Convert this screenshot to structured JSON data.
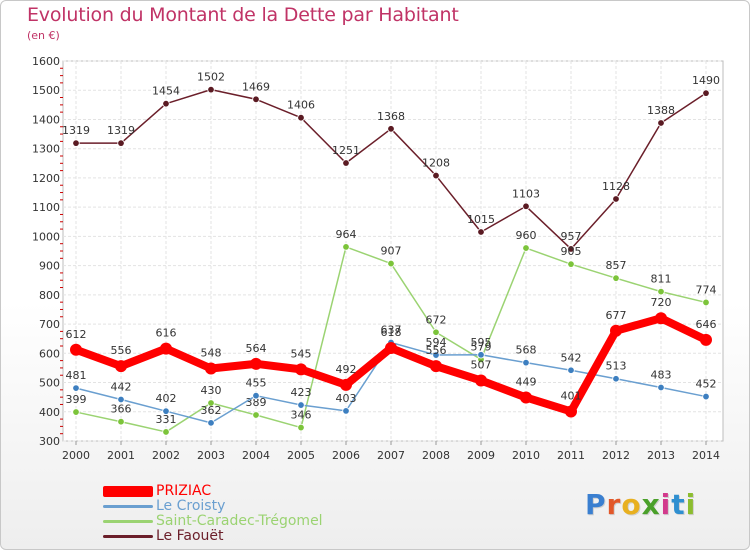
{
  "header": {
    "title": "Evolution du Montant de la Dette par Habitant",
    "subtitle": "(en €)"
  },
  "logo": {
    "text": "Proxiti",
    "colors": [
      "#3a7fd0",
      "#e2582a",
      "#e8b020",
      "#4aa02a",
      "#d23a8c",
      "#2f8fd0",
      "#8cbd2f"
    ]
  },
  "chart_data": {
    "type": "line",
    "title": "Evolution du Montant de la Dette par Habitant",
    "subtitle": "(en €)",
    "xlabel": "",
    "ylabel": "",
    "ylim": [
      300,
      1600
    ],
    "yticks": [
      300,
      400,
      500,
      600,
      700,
      800,
      900,
      1000,
      1100,
      1200,
      1300,
      1400,
      1500,
      1600
    ],
    "grid": true,
    "legend_position": "bottom-left",
    "x": [
      "2000",
      "2001",
      "2002",
      "2003",
      "2004",
      "2005",
      "2006",
      "2007",
      "2008",
      "2009",
      "2010",
      "2011",
      "2012",
      "2013",
      "2014"
    ],
    "series": [
      {
        "name": "Le Faouët",
        "color": "#6b1f2a",
        "point_color": "#5a1a22",
        "values": [
          1319,
          1319,
          1454,
          1502,
          1469,
          1406,
          1251,
          1368,
          1208,
          1015,
          1103,
          957,
          1128,
          1388,
          1490
        ]
      },
      {
        "name": "Saint-Caradec-Trégomel",
        "color": "#9bd372",
        "point_color": "#7cc43a",
        "values": [
          399,
          366,
          331,
          430,
          389,
          346,
          964,
          907,
          672,
          579,
          960,
          905,
          857,
          811,
          774
        ]
      },
      {
        "name": "Le Croisty",
        "color": "#6a9fd0",
        "point_color": "#3d7fc0",
        "values": [
          481,
          442,
          402,
          362,
          455,
          423,
          403,
          637,
          594,
          595,
          568,
          542,
          513,
          483,
          452
        ]
      },
      {
        "name": "PRIZIAC",
        "color": "#ff0000",
        "point_color": "#ff0000",
        "values": [
          612,
          556,
          616,
          548,
          564,
          545,
          492,
          618,
          556,
          507,
          449,
          401,
          677,
          720,
          646
        ]
      }
    ]
  },
  "legend": [
    {
      "name": "PRIZIAC",
      "color": "#ff0000",
      "thickness": 11
    },
    {
      "name": "Le Croisty",
      "color": "#6a9fd0",
      "thickness": 3
    },
    {
      "name": "Saint-Caradec-Trégomel",
      "color": "#9bd372",
      "thickness": 3
    },
    {
      "name": "Le Faouët",
      "color": "#6b1f2a",
      "thickness": 3
    }
  ]
}
